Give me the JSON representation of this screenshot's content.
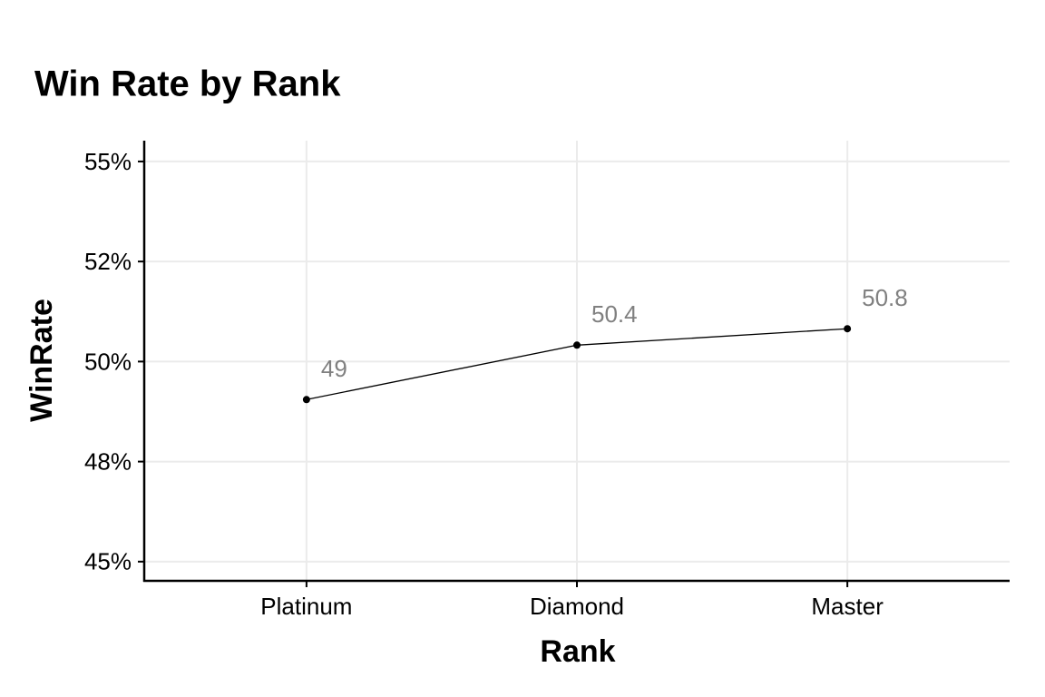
{
  "chart_data": {
    "type": "line",
    "title": "Win Rate by Rank",
    "x_label": "Rank",
    "y_label": "WinRate",
    "categories": [
      "Platinum",
      "Diamond",
      "Master"
    ],
    "values": [
      0.4905,
      0.5041,
      0.5082
    ],
    "value_labels": [
      "49",
      "50.4",
      "50.8"
    ],
    "color": "#000000",
    "label_color": "#808080",
    "ylim": [
      0.4452,
      0.5552
    ],
    "yticks": [
      {
        "value": 0.45,
        "label": "45%"
      },
      {
        "value": 0.475,
        "label": "48%"
      },
      {
        "value": 0.5,
        "label": "50%"
      },
      {
        "value": 0.525,
        "label": "52%"
      },
      {
        "value": 0.55,
        "label": "55%"
      }
    ],
    "grid": true
  }
}
